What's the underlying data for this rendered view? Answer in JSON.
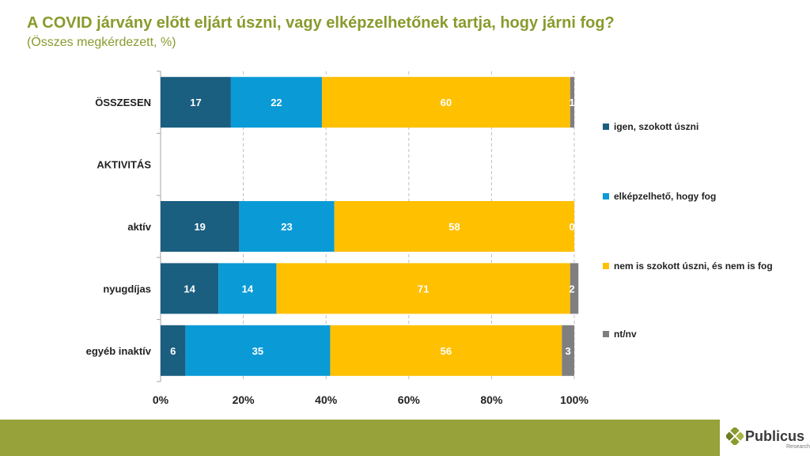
{
  "header": {
    "title": "A COVID járvány előtt eljárt úszni, vagy elképzelhetőnek tartja, hogy járni fog?",
    "subtitle": "(Összes megkérdezett, %)"
  },
  "chart_data": {
    "type": "bar",
    "orientation": "horizontal",
    "stacked": true,
    "categories": [
      "ÖSSZESEN",
      "AKTIVITÁS",
      "aktív",
      "nyugdíjas",
      "egyéb inaktív"
    ],
    "series": [
      {
        "name": "igen, szokott úszni",
        "color": "#1a5e80",
        "values": [
          17,
          null,
          19,
          14,
          6
        ]
      },
      {
        "name": "elképzelhető, hogy fog",
        "color": "#0a9ad6",
        "values": [
          22,
          null,
          23,
          14,
          35
        ]
      },
      {
        "name": "nem is szokott úszni, és nem is fog",
        "color": "#ffc000",
        "values": [
          60,
          null,
          58,
          71,
          56
        ]
      },
      {
        "name": "nt/nv",
        "color": "#7f7f7f",
        "values": [
          1,
          null,
          0,
          2,
          3
        ]
      }
    ],
    "x_ticks": [
      "0%",
      "20%",
      "40%",
      "60%",
      "80%",
      "100%"
    ],
    "xlim": [
      0,
      100
    ],
    "grid": true,
    "legend_position": "right"
  },
  "logo": {
    "name": "Publicus",
    "sub": "Research"
  }
}
